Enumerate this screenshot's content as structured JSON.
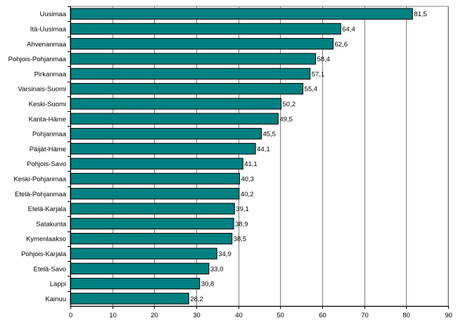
{
  "chart_data": {
    "type": "bar",
    "orientation": "horizontal",
    "categories": [
      "Uusimaa",
      "Itä-Uusimaa",
      "Ahvenanmaa",
      "Pohjois-Pohjanmaa",
      "Pirkanmaa",
      "Varsinais-Suomi",
      "Keski-Suomi",
      "Kanta-Häme",
      "Pohjanmaa",
      "Päijät-Häme",
      "Pohjois-Savo",
      "Keski-Pohjanmaa",
      "Etelä-Pohjanmaa",
      "Etelä-Karjala",
      "Satakunta",
      "Kymenlaakso",
      "Pohjois-Karjala",
      "Etelä-Savo",
      "Lappi",
      "Kainuu"
    ],
    "values": [
      81.5,
      64.4,
      62.6,
      58.4,
      57.1,
      55.4,
      50.2,
      49.5,
      45.5,
      44.1,
      41.1,
      40.3,
      40.2,
      39.1,
      38.9,
      38.5,
      34.9,
      33.0,
      30.8,
      28.2
    ],
    "value_labels": [
      "81,5",
      "64,4",
      "62,6",
      "58,4",
      "57,1",
      "55,4",
      "50,2",
      "49,5",
      "45,5",
      "44,1",
      "41,1",
      "40,3",
      "40,2",
      "39,1",
      "38,9",
      "38,5",
      "34,9",
      "33,0",
      "30,8",
      "28,2"
    ],
    "xlim": [
      0,
      90
    ],
    "xticks": [
      "0",
      "10",
      "20",
      "30",
      "40",
      "50",
      "60",
      "70",
      "80",
      "90"
    ],
    "grid": "vertical",
    "legend": "none",
    "colors": {
      "bar_fill": "#008080",
      "bar_stroke": "#000000",
      "grid": "#808080",
      "axis": "#000000"
    }
  }
}
